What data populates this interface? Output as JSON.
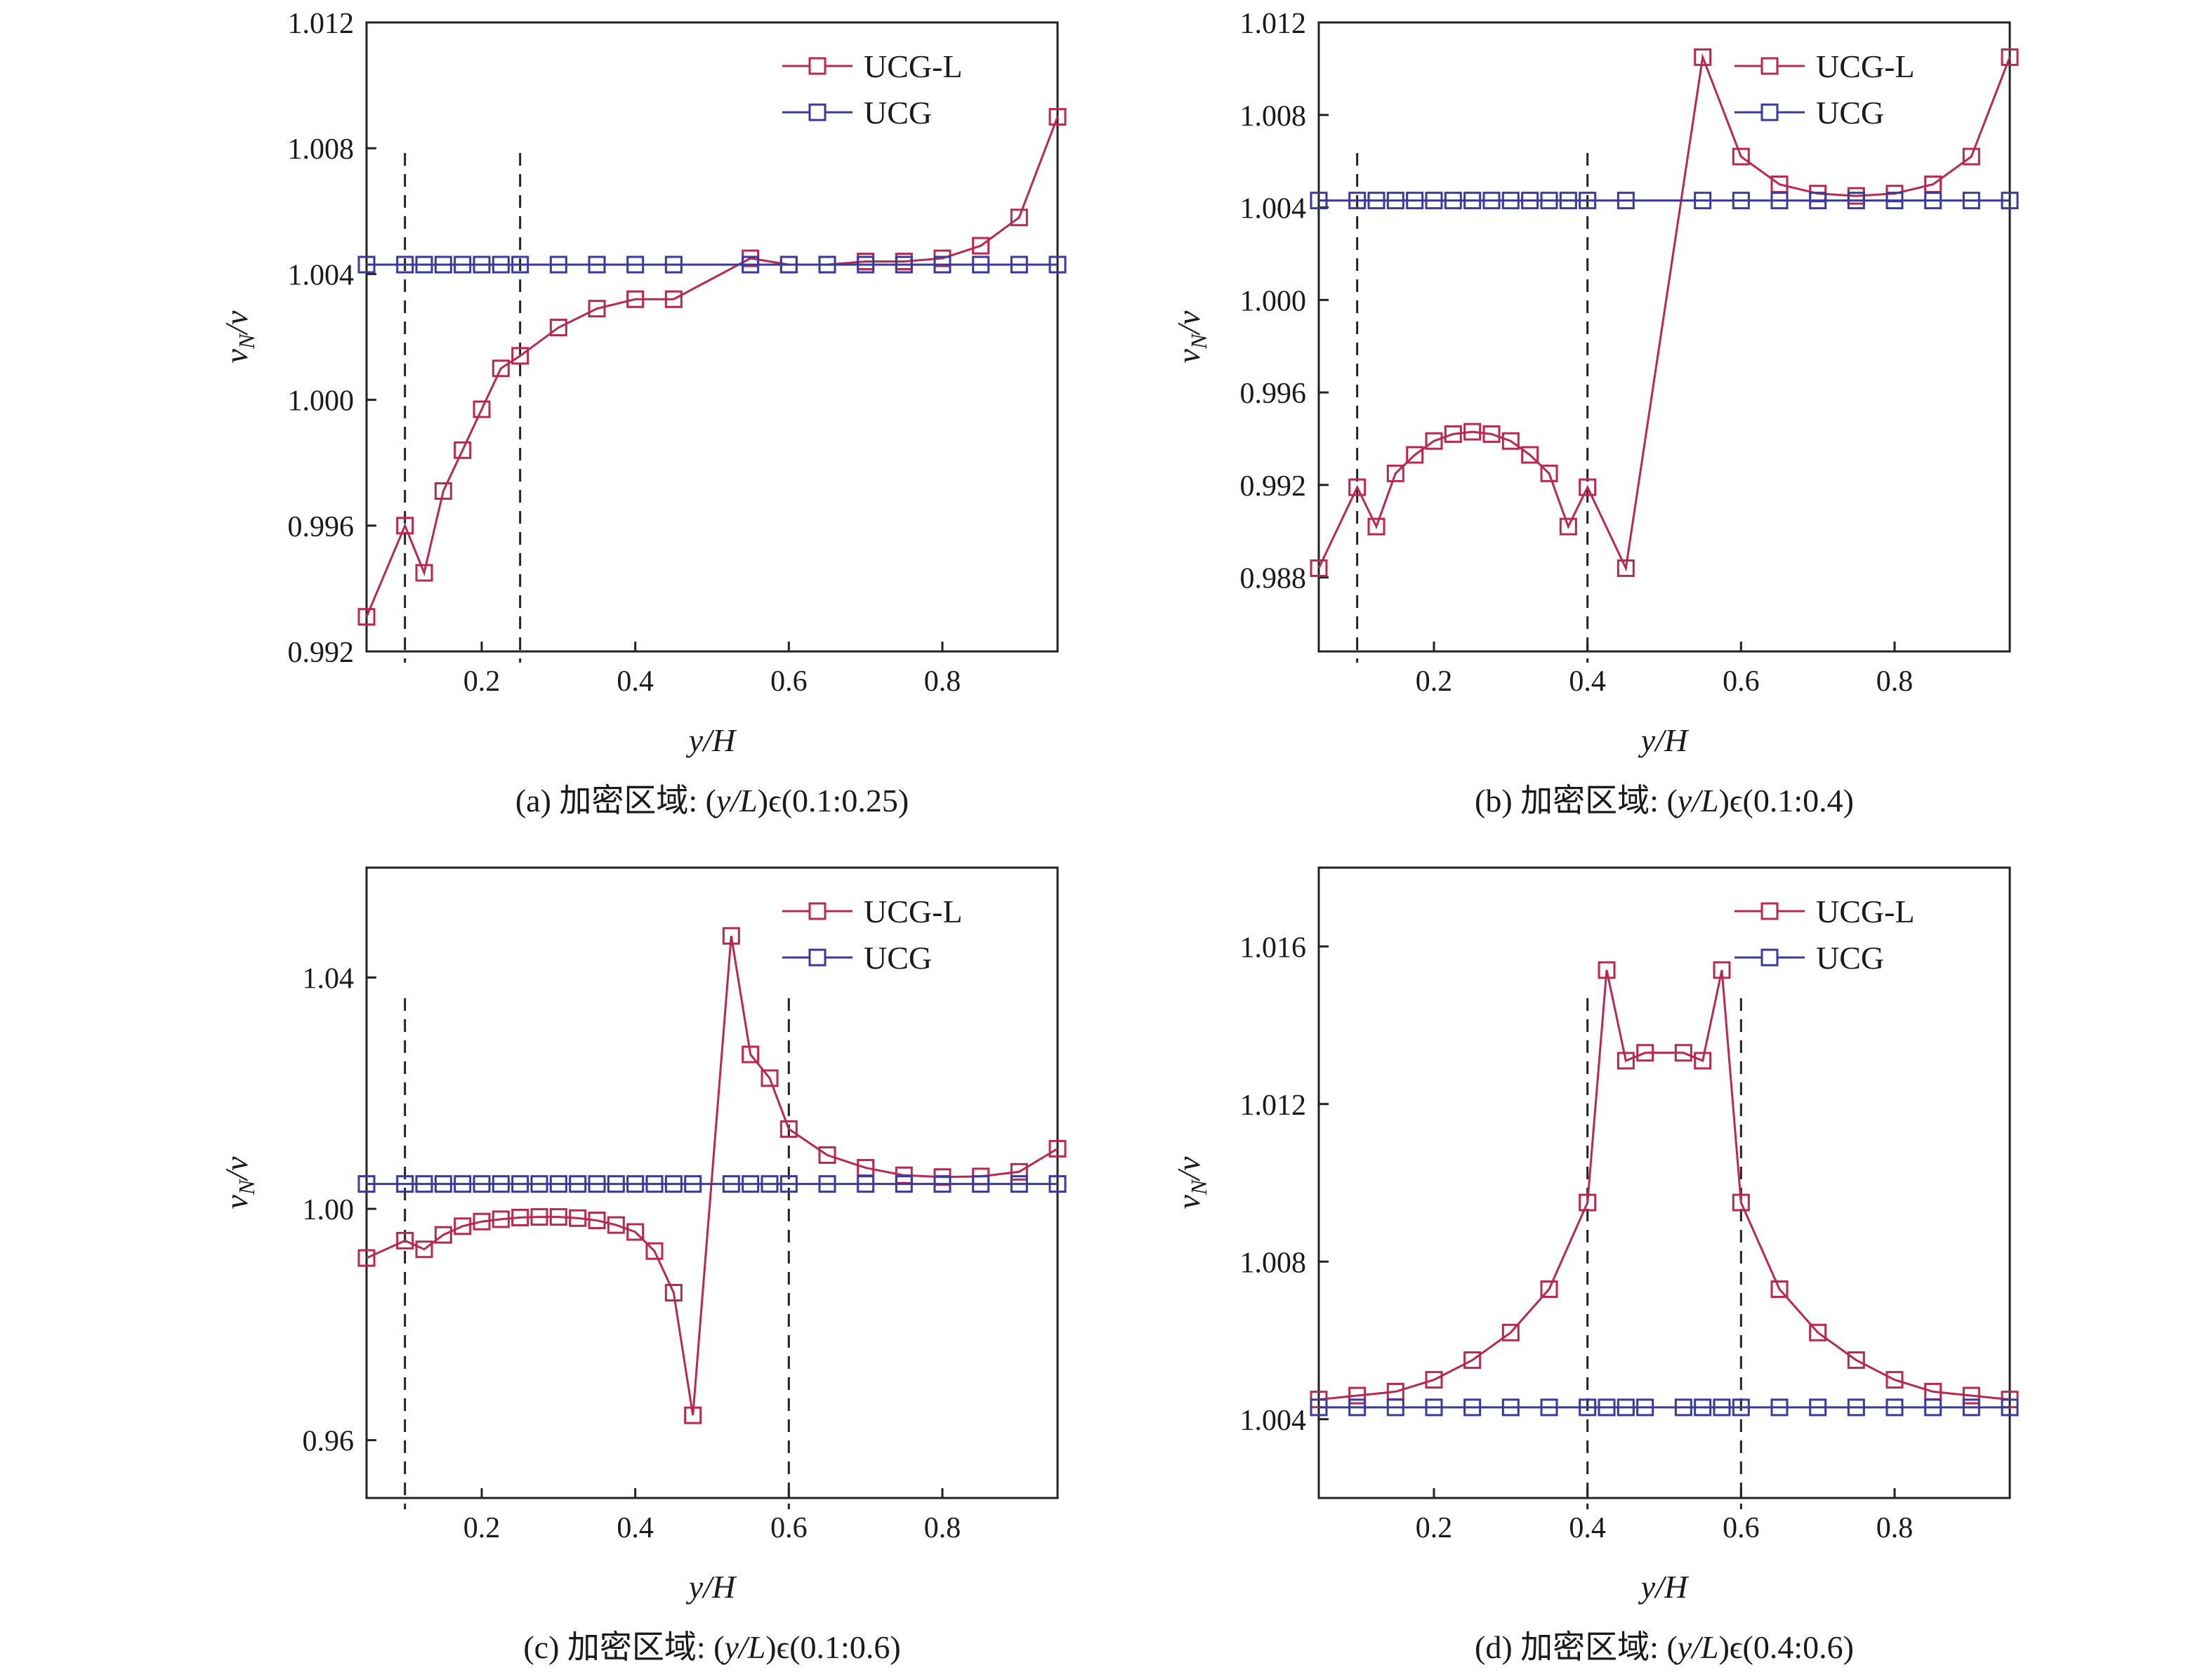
{
  "figure": {
    "panels": [
      {
        "caption_prefix": "(a) 加密区域: (",
        "caption_var": "y/L",
        "caption_suffix": ")ϵ(0.1:0.25)",
        "xlabel": "y/H",
        "ylabel_main": "v",
        "ylabel_sub": "N",
        "ylabel_tail": "/v"
      },
      {
        "caption_prefix": "(b) 加密区域: (",
        "caption_var": "y/L",
        "caption_suffix": ")ϵ(0.1:0.4)",
        "xlabel": "y/H",
        "ylabel_main": "v",
        "ylabel_sub": "N",
        "ylabel_tail": "/v"
      },
      {
        "caption_prefix": "(c) 加密区域: (",
        "caption_var": "y/L",
        "caption_suffix": ")ϵ(0.1:0.6)",
        "xlabel": "y/H",
        "ylabel_main": "v",
        "ylabel_sub": "N",
        "ylabel_tail": "/v"
      },
      {
        "caption_prefix": "(d) 加密区域: (",
        "caption_var": "y/L",
        "caption_suffix": ")ϵ(0.4:0.6)",
        "xlabel": "y/H",
        "ylabel_main": "v",
        "ylabel_sub": "N",
        "ylabel_tail": "/v"
      }
    ],
    "colors": {
      "ucg_l": "#b8294f",
      "ucg": "#3a3a9a",
      "axis": "#222222"
    }
  },
  "chart_data": [
    {
      "type": "line",
      "xlabel": "y/H",
      "ylabel": "vN/v",
      "xlim": [
        0.05,
        0.95
      ],
      "ylim": [
        0.992,
        1.012
      ],
      "xticks": [
        "0.2",
        "0.4",
        "0.6",
        "0.8"
      ],
      "xtick_values": [
        0.2,
        0.4,
        0.6,
        0.8
      ],
      "yticks": [
        "0.992",
        "0.996",
        "1.000",
        "1.004",
        "1.008",
        "1.012"
      ],
      "ytick_values": [
        0.992,
        0.996,
        1.0,
        1.004,
        1.008,
        1.012
      ],
      "vlines": [
        0.1,
        0.25
      ],
      "legend": "top-right",
      "series": [
        {
          "name": "UCG-L",
          "x": [
            0.05,
            0.1,
            0.125,
            0.15,
            0.175,
            0.2,
            0.225,
            0.25,
            0.3,
            0.35,
            0.4,
            0.45,
            0.55,
            0.6,
            0.65,
            0.7,
            0.75,
            0.8,
            0.85,
            0.9,
            0.95
          ],
          "y": [
            0.9931,
            0.996,
            0.9945,
            0.9971,
            0.9984,
            0.9997,
            1.001,
            1.0014,
            1.0023,
            1.0029,
            1.0032,
            1.0032,
            1.0045,
            1.0043,
            1.0043,
            1.0044,
            1.0044,
            1.0045,
            1.0049,
            1.0058,
            1.009
          ]
        },
        {
          "name": "UCG",
          "x": [
            0.05,
            0.1,
            0.125,
            0.15,
            0.175,
            0.2,
            0.225,
            0.25,
            0.3,
            0.35,
            0.4,
            0.45,
            0.55,
            0.6,
            0.65,
            0.7,
            0.75,
            0.8,
            0.85,
            0.9,
            0.95
          ],
          "y": [
            1.0043,
            1.0043,
            1.0043,
            1.0043,
            1.0043,
            1.0043,
            1.0043,
            1.0043,
            1.0043,
            1.0043,
            1.0043,
            1.0043,
            1.0043,
            1.0043,
            1.0043,
            1.0043,
            1.0043,
            1.0043,
            1.0043,
            1.0043,
            1.0043
          ]
        }
      ]
    },
    {
      "type": "line",
      "xlabel": "y/H",
      "ylabel": "vN/v",
      "xlim": [
        0.05,
        0.95
      ],
      "ylim": [
        0.9848,
        1.012
      ],
      "xticks": [
        "0.2",
        "0.4",
        "0.6",
        "0.8"
      ],
      "xtick_values": [
        0.2,
        0.4,
        0.6,
        0.8
      ],
      "yticks": [
        "0.988",
        "0.992",
        "0.996",
        "1.000",
        "1.004",
        "1.008",
        "1.012"
      ],
      "ytick_values": [
        0.988,
        0.992,
        0.996,
        1.0,
        1.004,
        1.008,
        1.012
      ],
      "vlines": [
        0.1,
        0.4
      ],
      "legend": "top-right",
      "series": [
        {
          "name": "UCG-L",
          "x": [
            0.05,
            0.1,
            0.125,
            0.15,
            0.175,
            0.2,
            0.225,
            0.25,
            0.275,
            0.3,
            0.325,
            0.35,
            0.375,
            0.4,
            0.45,
            0.55,
            0.6,
            0.65,
            0.7,
            0.75,
            0.8,
            0.85,
            0.9,
            0.95
          ],
          "y": [
            0.9884,
            0.9919,
            0.9902,
            0.9925,
            0.9933,
            0.9939,
            0.9942,
            0.9943,
            0.9942,
            0.9939,
            0.9933,
            0.9925,
            0.9902,
            0.9919,
            0.9884,
            1.0105,
            1.0062,
            1.005,
            1.0046,
            1.0045,
            1.0046,
            1.005,
            1.0062,
            1.0105
          ]
        },
        {
          "name": "UCG",
          "x": [
            0.05,
            0.1,
            0.125,
            0.15,
            0.175,
            0.2,
            0.225,
            0.25,
            0.275,
            0.3,
            0.325,
            0.35,
            0.375,
            0.4,
            0.45,
            0.55,
            0.6,
            0.65,
            0.7,
            0.75,
            0.8,
            0.85,
            0.9,
            0.95
          ],
          "y": [
            1.0043,
            1.0043,
            1.0043,
            1.0043,
            1.0043,
            1.0043,
            1.0043,
            1.0043,
            1.0043,
            1.0043,
            1.0043,
            1.0043,
            1.0043,
            1.0043,
            1.0043,
            1.0043,
            1.0043,
            1.0043,
            1.0043,
            1.0043,
            1.0043,
            1.0043,
            1.0043,
            1.0043
          ]
        }
      ]
    },
    {
      "type": "line",
      "xlabel": "y/H",
      "ylabel": "vN/v",
      "xlim": [
        0.05,
        0.95
      ],
      "ylim": [
        0.95,
        1.059
      ],
      "xticks": [
        "0.2",
        "0.4",
        "0.6",
        "0.8"
      ],
      "xtick_values": [
        0.2,
        0.4,
        0.6,
        0.8
      ],
      "yticks": [
        "0.96",
        "1.00",
        "1.04"
      ],
      "ytick_values": [
        0.96,
        1.0,
        1.04
      ],
      "vlines": [
        0.1,
        0.6
      ],
      "legend": "top-right",
      "series": [
        {
          "name": "UCG-L",
          "x": [
            0.05,
            0.1,
            0.125,
            0.15,
            0.175,
            0.2,
            0.225,
            0.25,
            0.275,
            0.3,
            0.325,
            0.35,
            0.375,
            0.4,
            0.425,
            0.45,
            0.475,
            0.525,
            0.55,
            0.575,
            0.6,
            0.65,
            0.7,
            0.75,
            0.8,
            0.85,
            0.9,
            0.95
          ],
          "y": [
            0.9915,
            0.9945,
            0.993,
            0.9955,
            0.997,
            0.9978,
            0.9982,
            0.9985,
            0.9986,
            0.9986,
            0.9984,
            0.998,
            0.9972,
            0.996,
            0.9927,
            0.9855,
            0.9643,
            1.0472,
            1.0267,
            1.0226,
            1.0138,
            1.0093,
            1.0071,
            1.0058,
            1.0055,
            1.0056,
            1.0064,
            1.0104
          ]
        },
        {
          "name": "UCG",
          "x": [
            0.05,
            0.1,
            0.125,
            0.15,
            0.175,
            0.2,
            0.225,
            0.25,
            0.275,
            0.3,
            0.325,
            0.35,
            0.375,
            0.4,
            0.425,
            0.45,
            0.475,
            0.525,
            0.55,
            0.575,
            0.6,
            0.65,
            0.7,
            0.75,
            0.8,
            0.85,
            0.9,
            0.95
          ],
          "y": [
            1.0043,
            1.0043,
            1.0043,
            1.0043,
            1.0043,
            1.0043,
            1.0043,
            1.0043,
            1.0043,
            1.0043,
            1.0043,
            1.0043,
            1.0043,
            1.0043,
            1.0043,
            1.0043,
            1.0043,
            1.0043,
            1.0043,
            1.0043,
            1.0043,
            1.0043,
            1.0043,
            1.0043,
            1.0043,
            1.0043,
            1.0043,
            1.0043
          ]
        }
      ]
    },
    {
      "type": "line",
      "xlabel": "y/H",
      "ylabel": "vN/v",
      "xlim": [
        0.05,
        0.95
      ],
      "ylim": [
        1.002,
        1.018
      ],
      "xticks": [
        "0.2",
        "0.4",
        "0.6",
        "0.8"
      ],
      "xtick_values": [
        0.2,
        0.4,
        0.6,
        0.8
      ],
      "yticks": [
        "1.004",
        "1.008",
        "1.012",
        "1.016"
      ],
      "ytick_values": [
        1.004,
        1.008,
        1.012,
        1.016
      ],
      "vlines": [
        0.4,
        0.6
      ],
      "legend": "top-right",
      "series": [
        {
          "name": "UCG-L",
          "x": [
            0.05,
            0.1,
            0.15,
            0.2,
            0.25,
            0.3,
            0.35,
            0.4,
            0.425,
            0.45,
            0.475,
            0.525,
            0.55,
            0.575,
            0.6,
            0.65,
            0.7,
            0.75,
            0.8,
            0.85,
            0.9,
            0.95
          ],
          "y": [
            1.0045,
            1.0046,
            1.0047,
            1.005,
            1.0055,
            1.0062,
            1.0073,
            1.0095,
            1.0154,
            1.0131,
            1.0133,
            1.0133,
            1.0131,
            1.0154,
            1.0095,
            1.0073,
            1.0062,
            1.0055,
            1.005,
            1.0047,
            1.0046,
            1.0045
          ]
        },
        {
          "name": "UCG",
          "x": [
            0.05,
            0.1,
            0.15,
            0.2,
            0.25,
            0.3,
            0.35,
            0.4,
            0.425,
            0.45,
            0.475,
            0.525,
            0.55,
            0.575,
            0.6,
            0.65,
            0.7,
            0.75,
            0.8,
            0.85,
            0.9,
            0.95
          ],
          "y": [
            1.0043,
            1.0043,
            1.0043,
            1.0043,
            1.0043,
            1.0043,
            1.0043,
            1.0043,
            1.0043,
            1.0043,
            1.0043,
            1.0043,
            1.0043,
            1.0043,
            1.0043,
            1.0043,
            1.0043,
            1.0043,
            1.0043,
            1.0043,
            1.0043,
            1.0043
          ]
        }
      ]
    }
  ]
}
